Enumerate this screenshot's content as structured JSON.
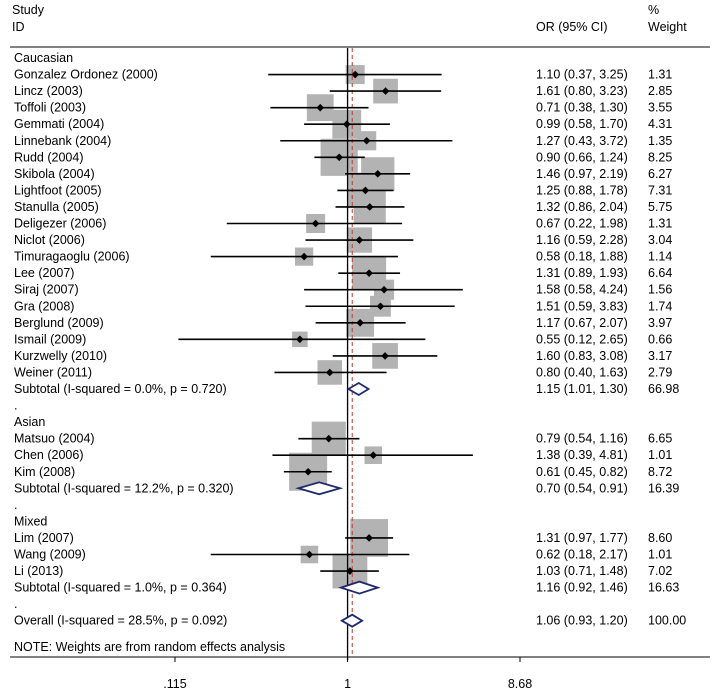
{
  "chart_data": {
    "type": "forest",
    "header": {
      "study": "Study",
      "id": "ID",
      "or": "OR (95% CI)",
      "weight_pct": "%",
      "weight": "Weight"
    },
    "x_scale": "log",
    "xlim": [
      0.115,
      8.68
    ],
    "ticks": [
      {
        "value": 0.115,
        "label": ".115"
      },
      {
        "value": 1,
        "label": "1"
      },
      {
        "value": 8.68,
        "label": "8.68"
      }
    ],
    "overall_line": 1.06,
    "groups": [
      {
        "name": "Caucasian",
        "studies": [
          {
            "label": "Gonzalez Ordonez (2000)",
            "or": 1.1,
            "lo": 0.37,
            "hi": 3.25,
            "text": "1.10 (0.37, 3.25)",
            "weight": 1.31,
            "weight_text": "1.31"
          },
          {
            "label": "Lincz (2003)",
            "or": 1.61,
            "lo": 0.8,
            "hi": 3.23,
            "text": "1.61 (0.80, 3.23)",
            "weight": 2.85,
            "weight_text": "2.85"
          },
          {
            "label": "Toffoli (2003)",
            "or": 0.71,
            "lo": 0.38,
            "hi": 1.3,
            "text": "0.71 (0.38, 1.30)",
            "weight": 3.55,
            "weight_text": "3.55"
          },
          {
            "label": "Gemmati (2004)",
            "or": 0.99,
            "lo": 0.58,
            "hi": 1.7,
            "text": "0.99 (0.58, 1.70)",
            "weight": 4.31,
            "weight_text": "4.31"
          },
          {
            "label": "Linnebank (2004)",
            "or": 1.27,
            "lo": 0.43,
            "hi": 3.72,
            "text": "1.27 (0.43, 3.72)",
            "weight": 1.35,
            "weight_text": "1.35"
          },
          {
            "label": "Rudd (2004)",
            "or": 0.9,
            "lo": 0.66,
            "hi": 1.24,
            "text": "0.90 (0.66, 1.24)",
            "weight": 8.25,
            "weight_text": "8.25"
          },
          {
            "label": "Skibola (2004)",
            "or": 1.46,
            "lo": 0.97,
            "hi": 2.19,
            "text": "1.46 (0.97, 2.19)",
            "weight": 6.27,
            "weight_text": "6.27"
          },
          {
            "label": "Lightfoot (2005)",
            "or": 1.25,
            "lo": 0.88,
            "hi": 1.78,
            "text": "1.25 (0.88, 1.78)",
            "weight": 7.31,
            "weight_text": "7.31"
          },
          {
            "label": "Stanulla (2005)",
            "or": 1.32,
            "lo": 0.86,
            "hi": 2.04,
            "text": "1.32 (0.86, 2.04)",
            "weight": 5.75,
            "weight_text": "5.75"
          },
          {
            "label": "Deligezer (2006)",
            "or": 0.67,
            "lo": 0.22,
            "hi": 1.98,
            "text": "0.67 (0.22, 1.98)",
            "weight": 1.31,
            "weight_text": "1.31"
          },
          {
            "label": "Niclot (2006)",
            "or": 1.16,
            "lo": 0.59,
            "hi": 2.28,
            "text": "1.16 (0.59, 2.28)",
            "weight": 3.04,
            "weight_text": "3.04"
          },
          {
            "label": "Timuragaoglu (2006)",
            "or": 0.58,
            "lo": 0.18,
            "hi": 1.88,
            "text": "0.58 (0.18, 1.88)",
            "weight": 1.14,
            "weight_text": "1.14"
          },
          {
            "label": "Lee (2007)",
            "or": 1.31,
            "lo": 0.89,
            "hi": 1.93,
            "text": "1.31 (0.89, 1.93)",
            "weight": 6.64,
            "weight_text": "6.64"
          },
          {
            "label": "Siraj (2007)",
            "or": 1.58,
            "lo": 0.58,
            "hi": 4.24,
            "text": "1.58 (0.58, 4.24)",
            "weight": 1.56,
            "weight_text": "1.56"
          },
          {
            "label": "Gra (2008)",
            "or": 1.51,
            "lo": 0.59,
            "hi": 3.83,
            "text": "1.51 (0.59, 3.83)",
            "weight": 1.74,
            "weight_text": "1.74"
          },
          {
            "label": "Berglund (2009)",
            "or": 1.17,
            "lo": 0.67,
            "hi": 2.07,
            "text": "1.17 (0.67, 2.07)",
            "weight": 3.97,
            "weight_text": "3.97"
          },
          {
            "label": "Ismail (2009)",
            "or": 0.55,
            "lo": 0.12,
            "hi": 2.65,
            "text": "0.55 (0.12, 2.65)",
            "weight": 0.66,
            "weight_text": "0.66"
          },
          {
            "label": "Kurzwelly (2010)",
            "or": 1.6,
            "lo": 0.83,
            "hi": 3.08,
            "text": "1.60 (0.83, 3.08)",
            "weight": 3.17,
            "weight_text": "3.17"
          },
          {
            "label": "Weiner (2011)",
            "or": 0.8,
            "lo": 0.4,
            "hi": 1.63,
            "text": "0.80 (0.40, 1.63)",
            "weight": 2.79,
            "weight_text": "2.79"
          }
        ],
        "subtotal": {
          "label": "Subtotal  (I-squared = 0.0%, p = 0.720)",
          "or": 1.15,
          "lo": 1.01,
          "hi": 1.3,
          "text": "1.15 (1.01, 1.30)",
          "weight_text": "66.98"
        }
      },
      {
        "name": "Asian",
        "studies": [
          {
            "label": "Matsuo (2004)",
            "or": 0.79,
            "lo": 0.54,
            "hi": 1.16,
            "text": "0.79 (0.54, 1.16)",
            "weight": 6.65,
            "weight_text": "6.65"
          },
          {
            "label": "Chen (2006)",
            "or": 1.38,
            "lo": 0.39,
            "hi": 4.81,
            "text": "1.38 (0.39, 4.81)",
            "weight": 1.01,
            "weight_text": "1.01"
          },
          {
            "label": "Kim (2008)",
            "or": 0.61,
            "lo": 0.45,
            "hi": 0.82,
            "text": "0.61 (0.45, 0.82)",
            "weight": 8.72,
            "weight_text": "8.72"
          }
        ],
        "subtotal": {
          "label": "Subtotal  (I-squared = 12.2%, p = 0.320)",
          "or": 0.7,
          "lo": 0.54,
          "hi": 0.91,
          "text": "0.70 (0.54, 0.91)",
          "weight_text": "16.39"
        }
      },
      {
        "name": "Mixed",
        "studies": [
          {
            "label": "Lim (2007)",
            "or": 1.31,
            "lo": 0.97,
            "hi": 1.77,
            "text": "1.31 (0.97, 1.77)",
            "weight": 8.6,
            "weight_text": "8.60"
          },
          {
            "label": "Wang (2009)",
            "or": 0.62,
            "lo": 0.18,
            "hi": 2.17,
            "text": "0.62 (0.18, 2.17)",
            "weight": 1.01,
            "weight_text": "1.01"
          },
          {
            "label": "Li (2013)",
            "or": 1.03,
            "lo": 0.71,
            "hi": 1.48,
            "text": "1.03 (0.71, 1.48)",
            "weight": 7.02,
            "weight_text": "7.02"
          }
        ],
        "subtotal": {
          "label": "Subtotal  (I-squared = 1.0%, p = 0.364)",
          "or": 1.16,
          "lo": 0.92,
          "hi": 1.46,
          "text": "1.16 (0.92, 1.46)",
          "weight_text": "16.63"
        }
      }
    ],
    "overall": {
      "label": "Overall  (I-squared = 28.5%, p = 0.092)",
      "or": 1.06,
      "lo": 0.93,
      "hi": 1.2,
      "text": "1.06 (0.93, 1.20)",
      "weight_text": "100.00"
    },
    "note": "NOTE: Weights are from random effects analysis",
    "colors": {
      "box": "#b3b3b3",
      "diamond": "#1f2a6b",
      "overall_line": "#c0392b",
      "line": "#000000"
    }
  }
}
